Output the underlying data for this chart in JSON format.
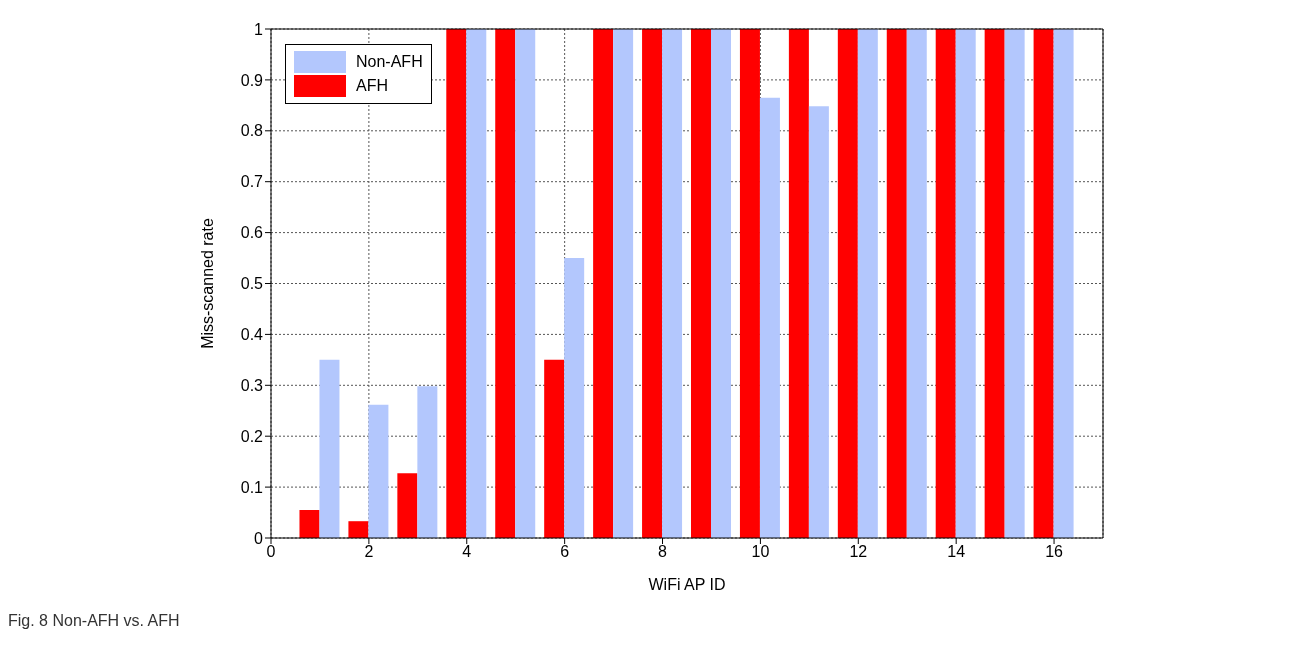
{
  "chart_data": {
    "type": "bar",
    "xlabel": "WiFi AP ID",
    "ylabel": "Miss-scanned rate",
    "x": [
      1,
      2,
      3,
      4,
      5,
      6,
      7,
      8,
      9,
      10,
      11,
      12,
      13,
      14,
      15,
      16
    ],
    "series": [
      {
        "name": "Non-AFH",
        "color": "#b3c7fd",
        "values": [
          0.35,
          0.262,
          0.298,
          1,
          1,
          0.55,
          1,
          1,
          1,
          0.865,
          0.848,
          1,
          1,
          1,
          1,
          1
        ]
      },
      {
        "name": "AFH",
        "color": "#ff0000",
        "values": [
          0.055,
          0.033,
          0.127,
          1,
          1,
          0.35,
          1,
          1,
          1,
          1,
          1,
          1,
          1,
          1,
          1,
          1
        ]
      }
    ],
    "xlim": [
      0,
      17
    ],
    "xticks": [
      0,
      2,
      4,
      6,
      8,
      10,
      12,
      14,
      16
    ],
    "ylim": [
      0,
      1
    ],
    "yticks": [
      0,
      0.1,
      0.2,
      0.3,
      0.4,
      0.5,
      0.6,
      0.7,
      0.8,
      0.9,
      1
    ],
    "grid": true,
    "legend": "top left",
    "annotations": [
      "Fig. 8 Non-AFH vs. AFH"
    ]
  }
}
